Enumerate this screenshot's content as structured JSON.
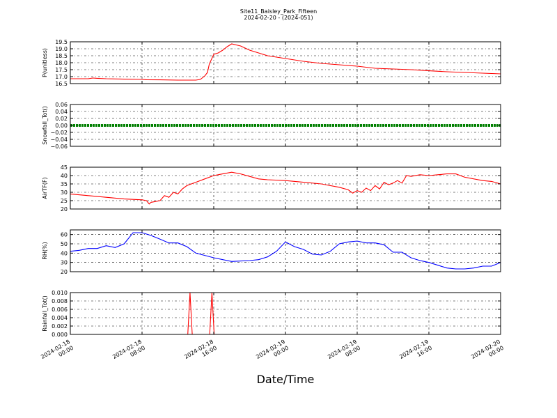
{
  "title": "Site11_Baisley_Park_Fifteen",
  "subtitle": "2024-02-20 - (2024-051)",
  "xlabel": "Date/Time",
  "x_ticks": [
    {
      "t": 0,
      "line1": "2024-02-18",
      "line2": "00:00"
    },
    {
      "t": 8,
      "line1": "2024-02-18",
      "line2": "08:00"
    },
    {
      "t": 16,
      "line1": "2024-02-18",
      "line2": "16:00"
    },
    {
      "t": 24,
      "line1": "2024-02-19",
      "line2": "00:00"
    },
    {
      "t": 32,
      "line1": "2024-02-19",
      "line2": "08:00"
    },
    {
      "t": 40,
      "line1": "2024-02-19",
      "line2": "16:00"
    },
    {
      "t": 48,
      "line1": "2024-02-20",
      "line2": "00:00"
    }
  ],
  "chart_data": [
    {
      "type": "line",
      "ylabel": "P(unitless)",
      "ylim": [
        16.5,
        19.5
      ],
      "yticks": [
        "19.5",
        "19.0",
        "18.5",
        "18.0",
        "17.5",
        "17.0",
        "16.5"
      ],
      "yticks_values": [
        19.5,
        19.0,
        18.5,
        18.0,
        17.5,
        17.0,
        16.5
      ],
      "color": "#ff0000",
      "x_hours": [
        0,
        2,
        2.5,
        3,
        4,
        6,
        8,
        8.5,
        10,
        12,
        13,
        14,
        14.5,
        15,
        15.3,
        15.5,
        16,
        16.5,
        17,
        17.5,
        18,
        19,
        20,
        21,
        22,
        24,
        26,
        28,
        30,
        32,
        34,
        36,
        38,
        40,
        42,
        44,
        46,
        48
      ],
      "values": [
        16.85,
        16.85,
        16.9,
        16.88,
        16.85,
        16.82,
        16.8,
        16.78,
        16.77,
        16.75,
        16.75,
        16.75,
        16.8,
        17.05,
        17.3,
        17.9,
        18.6,
        18.7,
        18.9,
        19.15,
        19.35,
        19.2,
        18.9,
        18.7,
        18.5,
        18.3,
        18.1,
        17.95,
        17.85,
        17.75,
        17.6,
        17.55,
        17.5,
        17.42,
        17.35,
        17.3,
        17.25,
        17.2
      ]
    },
    {
      "type": "scatter",
      "ylabel": "Snowfall_Tot()",
      "ylim": [
        -0.06,
        0.06
      ],
      "yticks": [
        "0.06",
        "0.04",
        "0.02",
        "0.00",
        "−0.02",
        "−0.04",
        "−0.06"
      ],
      "yticks_values": [
        0.06,
        0.04,
        0.02,
        0.0,
        -0.02,
        -0.04,
        -0.06
      ],
      "color": "#008000",
      "x_hours": [
        0,
        48
      ],
      "values": [
        0,
        0
      ]
    },
    {
      "type": "line",
      "ylabel": "AirTF(F)",
      "ylim": [
        20,
        45
      ],
      "yticks": [
        "45",
        "40",
        "35",
        "30",
        "25",
        "20"
      ],
      "yticks_values": [
        45,
        40,
        35,
        30,
        25,
        20
      ],
      "color": "#ff0000",
      "x_hours": [
        0,
        2,
        4,
        6,
        8,
        8.5,
        8.8,
        9,
        10,
        10.5,
        11,
        11.5,
        12,
        12.5,
        13,
        14,
        15,
        16,
        17,
        18,
        19,
        20,
        21,
        22,
        24,
        26,
        28,
        30,
        31,
        31.5,
        32,
        32.5,
        33,
        33.5,
        34,
        34.5,
        35,
        35.5,
        36,
        36.5,
        37,
        37.5,
        38,
        39,
        40,
        41,
        42,
        43,
        44,
        46,
        47,
        48
      ],
      "values": [
        29,
        28,
        27,
        26,
        25.5,
        25,
        23,
        24,
        25,
        28,
        27,
        30,
        29,
        32,
        34,
        36,
        38,
        40,
        41,
        42,
        41,
        39.5,
        38,
        37.5,
        37,
        36,
        35,
        33,
        31.5,
        29.5,
        31,
        30,
        32.5,
        31,
        34,
        32,
        36,
        34.5,
        35.5,
        37,
        35.5,
        40,
        39.5,
        40.5,
        40,
        40.5,
        41,
        41,
        39,
        37,
        36.5,
        35
      ]
    },
    {
      "type": "line",
      "ylabel": "RH(%)",
      "ylim": [
        20,
        65
      ],
      "yticks": [
        "60",
        "50",
        "40",
        "30",
        "20"
      ],
      "yticks_values": [
        60,
        50,
        40,
        30,
        20
      ],
      "color": "#0000ff",
      "x_hours": [
        0,
        1,
        2,
        3,
        4,
        5,
        6,
        7,
        8,
        9,
        10,
        11,
        12,
        13,
        14,
        16,
        18,
        20,
        21,
        22,
        23,
        24,
        25,
        26,
        27,
        28,
        29,
        30,
        31,
        32,
        33,
        34,
        35,
        36,
        37,
        38,
        39,
        40,
        41,
        42,
        43,
        44,
        45,
        46,
        47,
        48
      ],
      "values": [
        42,
        43,
        45,
        45,
        48,
        46,
        50,
        62,
        62,
        59,
        55,
        51,
        51,
        47,
        40,
        35,
        31,
        32,
        33,
        36,
        42,
        52,
        47,
        44,
        39,
        38,
        42,
        50,
        52,
        53,
        51,
        51,
        49,
        41,
        41,
        35,
        32,
        30,
        27,
        24,
        23,
        23,
        24,
        26,
        26,
        30
      ]
    },
    {
      "type": "line",
      "ylabel": "Rainfall_Tot()",
      "ylim": [
        0,
        0.01
      ],
      "yticks": [
        "0.010",
        "0.008",
        "0.006",
        "0.004",
        "0.002",
        "0.000"
      ],
      "yticks_values": [
        0.01,
        0.008,
        0.006,
        0.004,
        0.002,
        0.0
      ],
      "color": "#ff0000",
      "x_hours": [
        0,
        13.1,
        13.35,
        13.6,
        15.55,
        15.8,
        16.05,
        48
      ],
      "values": [
        0,
        0,
        0.01,
        0,
        0,
        0.01,
        0,
        0
      ]
    }
  ]
}
